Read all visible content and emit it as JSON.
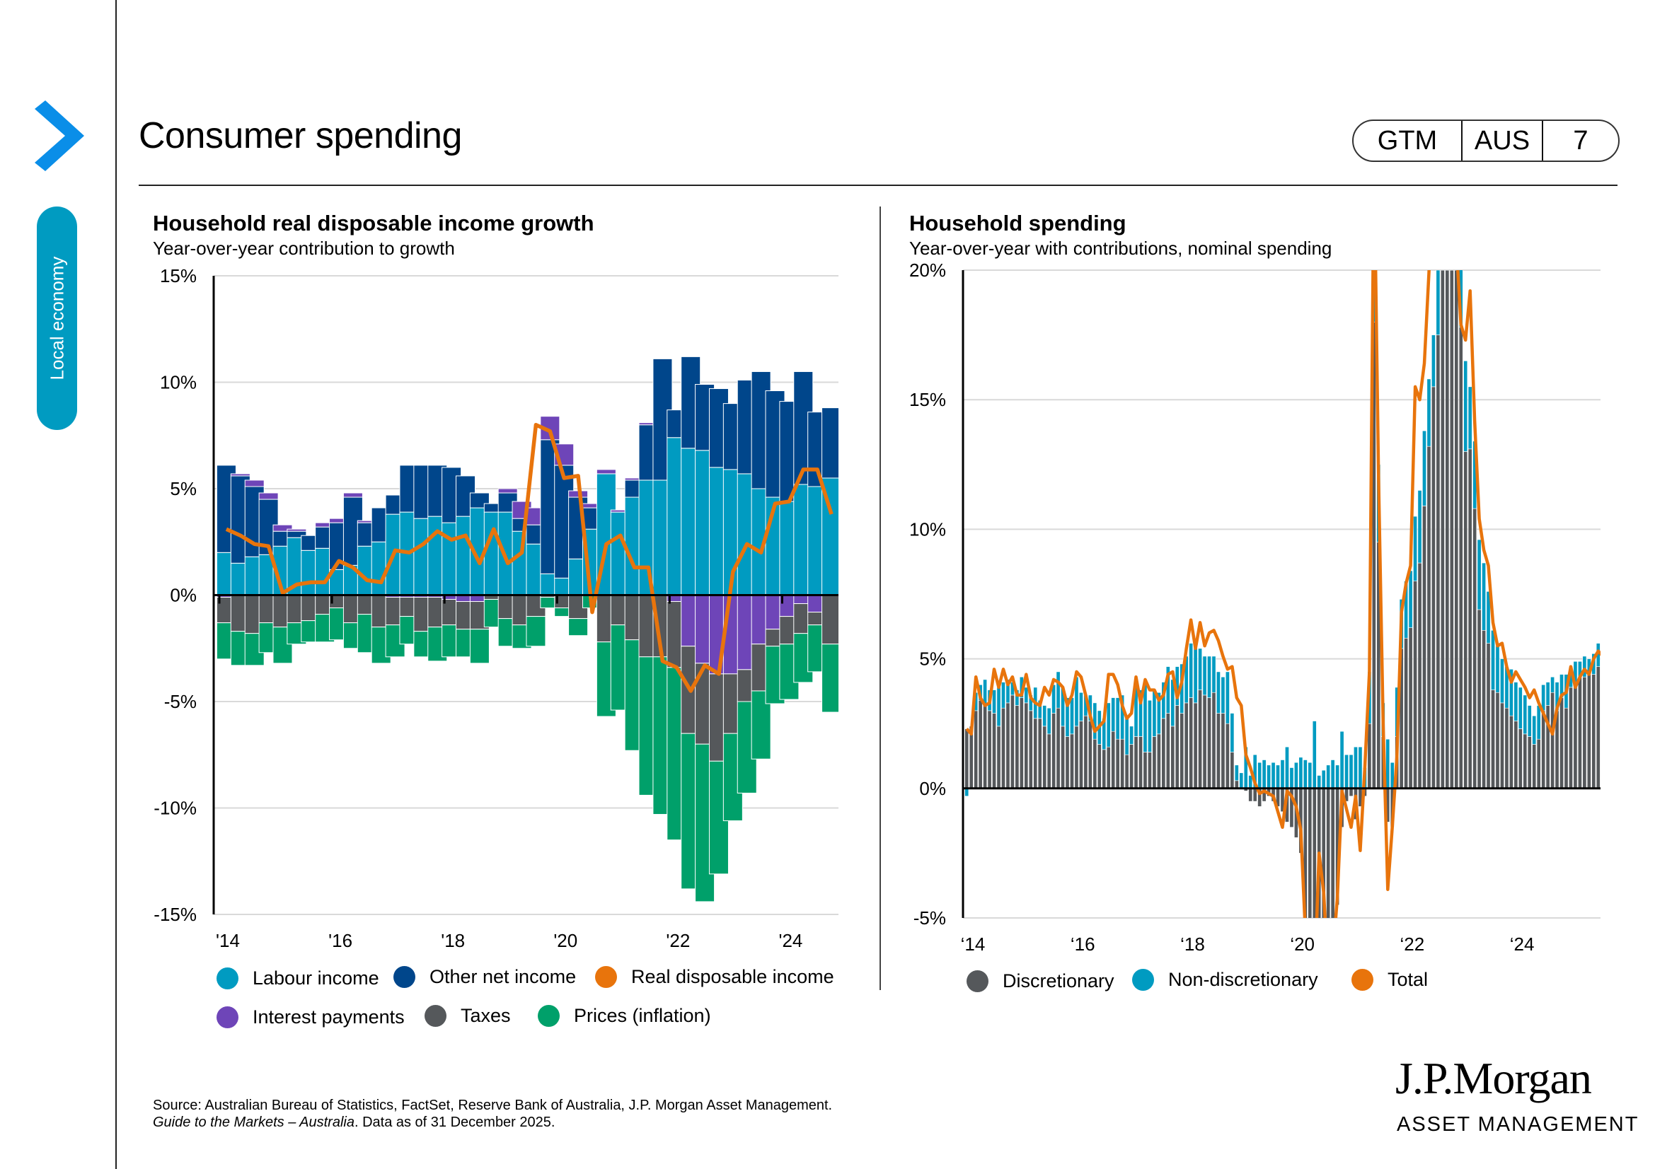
{
  "page": {
    "title": "Consumer spending",
    "section_tab": "Local economy",
    "badge": {
      "series": "GTM",
      "region": "AUS",
      "page": "7"
    },
    "source_line1": "Source: Australian Bureau of Statistics, FactSet, Reserve Bank of Australia, J.P. Morgan Asset Management.",
    "source_line2_italic": "Guide to the Markets – Australia",
    "source_line2_rest": ". Data as of 31 December 2025.",
    "logo_main": "J.P.Morgan",
    "logo_sub": "ASSET MANAGEMENT",
    "colors": {
      "accent_blue": "#0a8ee8",
      "teal": "#009bc1",
      "navy": "#00468b",
      "orange": "#e8740c",
      "purple": "#6e45b8",
      "grey": "#55585b",
      "green": "#00a06a"
    }
  },
  "chart_data": [
    {
      "type": "bar",
      "stacked": true,
      "title": "Household real disposable income growth",
      "subtitle": "Year-over-year contribution to growth",
      "frequency": "quarterly",
      "start": "2014Q1",
      "ylim": [
        -15,
        15
      ],
      "yticks": [
        "15%",
        "10%",
        "5%",
        "0%",
        "-5%",
        "-10%",
        "-15%"
      ],
      "ytick_values": [
        15,
        10,
        5,
        0,
        -5,
        -10,
        -15
      ],
      "xticks": [
        "'14",
        "'16",
        "'18",
        "'20",
        "'22",
        "'24"
      ],
      "grid": true,
      "legend_position": "bottom",
      "series": [
        {
          "name": "Labour income",
          "color": "#009bc1",
          "values": [
            2.0,
            1.5,
            1.8,
            1.9,
            2.3,
            2.7,
            2.1,
            2.2,
            1.2,
            1.4,
            2.3,
            2.5,
            3.8,
            3.9,
            3.6,
            3.7,
            3.4,
            3.7,
            4.1,
            3.9,
            3.9,
            3.0,
            2.4,
            1.0,
            0.8,
            1.7,
            3.1,
            5.7,
            3.9,
            4.6,
            5.4,
            5.4,
            7.4,
            6.9,
            6.8,
            6.0,
            5.9,
            5.7,
            5.0,
            4.6,
            4.4,
            5.2,
            5.1,
            5.5
          ]
        },
        {
          "name": "Other net income",
          "color": "#00468b",
          "values": [
            4.1,
            4.1,
            3.3,
            2.6,
            0.7,
            0.3,
            0.7,
            1.0,
            2.2,
            3.2,
            1.1,
            1.6,
            0.9,
            2.2,
            2.5,
            2.4,
            2.6,
            1.9,
            0.7,
            0.4,
            0.9,
            0.6,
            0.9,
            6.3,
            5.3,
            2.9,
            1.0,
            0.0,
            0.0,
            0.8,
            2.6,
            5.7,
            1.3,
            4.3,
            3.1,
            3.7,
            3.1,
            4.4,
            5.5,
            5.0,
            4.7,
            5.3,
            3.5,
            3.3
          ]
        },
        {
          "name": "Interest payments",
          "color": "#6e45b8",
          "values": [
            -0.1,
            0.1,
            0.3,
            0.3,
            0.3,
            0.1,
            0.0,
            0.2,
            0.2,
            0.2,
            0.1,
            0.0,
            -0.1,
            -0.1,
            -0.1,
            -0.1,
            -0.2,
            -0.3,
            -0.3,
            0.0,
            0.2,
            0.8,
            0.8,
            1.1,
            1.0,
            0.3,
            0.2,
            0.2,
            0.1,
            0.1,
            0.1,
            0.0,
            -0.3,
            -2.4,
            -3.2,
            -3.7,
            -3.7,
            -3.5,
            -2.3,
            -1.6,
            -1.0,
            -0.4,
            -0.8,
            0.0
          ]
        },
        {
          "name": "Taxes",
          "color": "#55585b",
          "values": [
            -1.2,
            -1.7,
            -1.8,
            -1.3,
            -1.5,
            -1.3,
            -1.2,
            -0.9,
            -0.6,
            -1.3,
            -0.9,
            -1.5,
            -1.3,
            -0.9,
            -1.6,
            -1.4,
            -1.2,
            -1.3,
            -1.3,
            -0.2,
            -1.1,
            -1.4,
            -1.0,
            -0.1,
            -0.6,
            -1.1,
            0.0,
            -2.2,
            -1.4,
            -2.1,
            -2.9,
            -2.9,
            -3.1,
            -4.1,
            -3.8,
            -4.1,
            -2.8,
            -1.5,
            -2.2,
            -0.8,
            -1.3,
            -1.4,
            -0.6,
            -2.3
          ]
        },
        {
          "name": "Prices (inflation)",
          "color": "#00a06a",
          "values": [
            -1.7,
            -1.6,
            -1.5,
            -1.4,
            -1.7,
            -1.0,
            -1.0,
            -1.3,
            -1.5,
            -1.2,
            -1.8,
            -1.7,
            -1.5,
            -1.3,
            -1.2,
            -1.6,
            -1.5,
            -1.3,
            -1.6,
            -1.3,
            -1.3,
            -1.1,
            -1.4,
            -0.5,
            -0.4,
            -0.8,
            -0.6,
            -3.5,
            -4.0,
            -5.2,
            -6.5,
            -7.4,
            -8.1,
            -7.3,
            -7.4,
            -5.3,
            -4.1,
            -4.3,
            -3.2,
            -2.7,
            -2.6,
            -2.3,
            -2.2,
            -3.2
          ]
        }
      ],
      "line": {
        "name": "Real disposable income",
        "color": "#e8740c",
        "values": [
          3.1,
          2.8,
          2.4,
          2.3,
          0.1,
          0.5,
          0.6,
          0.6,
          1.6,
          1.3,
          0.7,
          0.6,
          2.1,
          2.0,
          2.4,
          3.0,
          2.6,
          2.8,
          1.5,
          3.1,
          1.5,
          2.0,
          8.0,
          7.7,
          5.5,
          5.6,
          -0.8,
          2.4,
          2.8,
          1.3,
          1.3,
          -3.1,
          -3.4,
          -4.5,
          -3.3,
          -3.7,
          1.1,
          2.4,
          2.0,
          4.3,
          4.4,
          5.9,
          5.9,
          3.8
        ]
      }
    },
    {
      "type": "bar",
      "stacked": true,
      "title": "Household spending",
      "subtitle": "Year-over-year with contributions, nominal spending",
      "frequency": "monthly",
      "start": "2014-01",
      "ylim": [
        -5,
        20
      ],
      "yticks": [
        "20%",
        "15%",
        "10%",
        "5%",
        "0%",
        "-5%"
      ],
      "ytick_values": [
        20,
        15,
        10,
        5,
        0,
        -5
      ],
      "xticks": [
        "‘14",
        "‘16",
        "‘18",
        "‘20",
        "‘22",
        "‘24"
      ],
      "grid": true,
      "legend_position": "bottom",
      "series": [
        {
          "name": "Discretionary",
          "color": "#55585b",
          "values": [
            2.3,
            2.4,
            3.0,
            3.4,
            3.2,
            3.0,
            2.9,
            2.4,
            3.1,
            3.3,
            3.6,
            3.2,
            3.5,
            3.3,
            3.0,
            2.7,
            2.7,
            2.4,
            2.1,
            2.9,
            3.1,
            2.4,
            2.0,
            2.1,
            2.4,
            2.6,
            2.8,
            2.6,
            1.9,
            1.7,
            1.5,
            1.6,
            2.2,
            1.9,
            1.9,
            1.3,
            1.7,
            2.0,
            2.0,
            1.4,
            1.4,
            2.0,
            2.1,
            2.7,
            2.9,
            2.4,
            3.2,
            2.9,
            3.3,
            3.5,
            3.3,
            3.8,
            3.6,
            3.5,
            3.7,
            2.9,
            2.9,
            2.5,
            1.4,
            0.3,
            0.0,
            -0.1,
            -0.5,
            -0.5,
            -0.7,
            -0.5,
            -0.3,
            -0.5,
            -0.7,
            -0.9,
            -1.3,
            -1.5,
            -1.9,
            -2.5,
            -5.5,
            -6.5,
            -6.5,
            -6.5,
            -6.5,
            -6.5,
            -6.0,
            -4.5,
            -1.5,
            -0.5,
            -0.3,
            -1.2,
            -0.7,
            -0.3,
            2.5,
            18.0,
            9.5,
            2.0,
            -1.3,
            -1.5,
            2.0,
            5.4,
            5.8,
            6.2,
            8.0,
            8.7,
            10.9,
            13.2,
            15.5,
            17.5,
            20.0,
            20.0,
            20.0,
            20.0,
            17.8,
            13.0,
            13.1,
            10.8,
            6.9,
            6.1,
            5.6,
            3.8,
            3.7,
            3.3,
            3.1,
            2.8,
            2.6,
            2.3,
            2.1,
            2.0,
            1.7,
            1.9,
            3.0,
            3.2,
            3.7,
            3.0,
            3.5,
            3.1,
            3.9,
            4.1,
            4.3,
            4.3,
            4.4,
            4.4,
            4.7
          ]
        },
        {
          "name": "Non-discretionary",
          "color": "#009bc1",
          "values": [
            -0.3,
            0.0,
            0.7,
            0.6,
            1.0,
            0.8,
            0.9,
            1.5,
            1.0,
            0.9,
            0.5,
            0.6,
            0.8,
            0.6,
            0.6,
            1.2,
            0.7,
            0.8,
            1.0,
            1.1,
            1.4,
            1.5,
            1.5,
            1.4,
            1.9,
            1.1,
            0.8,
            1.0,
            1.4,
            1.3,
            1.2,
            1.7,
            1.3,
            1.6,
            1.7,
            1.5,
            0.7,
            1.9,
            1.8,
            2.6,
            2.0,
            1.8,
            1.6,
            1.4,
            1.8,
            1.8,
            1.5,
            1.9,
            1.8,
            2.1,
            2.2,
            1.6,
            1.5,
            1.6,
            1.4,
            1.6,
            1.4,
            2.0,
            1.5,
            0.6,
            0.6,
            1.6,
            0.5,
            1.3,
            1.0,
            1.1,
            0.9,
            1.0,
            0.9,
            1.1,
            1.6,
            0.8,
            1.0,
            1.2,
            1.1,
            1.0,
            2.6,
            0.5,
            0.7,
            0.9,
            1.1,
            0.9,
            2.2,
            1.3,
            1.3,
            1.6,
            1.6,
            0.8,
            2.0,
            4.0,
            3.0,
            1.3,
            1.9,
            1.0,
            1.9,
            1.9,
            2.2,
            2.2,
            2.5,
            2.8,
            2.9,
            2.6,
            2.0,
            2.5,
            2.5,
            2.5,
            2.5,
            2.5,
            2.3,
            3.5,
            2.4,
            2.6,
            2.7,
            2.6,
            2.0,
            2.3,
            1.8,
            1.7,
            1.6,
            1.8,
            1.5,
            1.6,
            1.5,
            1.2,
            1.1,
            1.3,
            1.0,
            0.9,
            0.6,
            1.1,
            0.9,
            1.3,
            0.6,
            0.8,
            0.6,
            0.8,
            0.6,
            0.8,
            0.9
          ]
        }
      ],
      "line": {
        "name": "Total",
        "color": "#e8740c",
        "values": [
          2.3,
          2.1,
          4.3,
          3.5,
          3.2,
          3.3,
          4.6,
          3.9,
          4.6,
          4.0,
          4.3,
          3.6,
          3.6,
          4.4,
          3.5,
          3.3,
          3.2,
          3.9,
          3.6,
          4.2,
          4.1,
          3.9,
          3.2,
          3.6,
          4.5,
          4.3,
          3.6,
          2.8,
          2.2,
          2.4,
          2.6,
          4.4,
          4.4,
          4.0,
          3.2,
          2.7,
          2.9,
          4.3,
          3.3,
          4.2,
          3.8,
          3.8,
          3.4,
          3.6,
          4.4,
          4.5,
          3.5,
          4.1,
          5.4,
          6.5,
          5.4,
          6.4,
          5.5,
          6.0,
          6.1,
          5.7,
          5.1,
          4.6,
          4.7,
          3.5,
          3.2,
          1.3,
          0.8,
          0.2,
          -0.2,
          -0.1,
          -0.2,
          -0.3,
          -0.9,
          -1.5,
          -0.1,
          -0.3,
          -0.7,
          -1.6,
          -5.5,
          -7.3,
          -7.6,
          -2.5,
          -4.0,
          -7.2,
          -6.5,
          -4.2,
          -0.1,
          -0.8,
          -1.5,
          -0.3,
          -2.4,
          0.8,
          4.5,
          24.5,
          12.0,
          2.5,
          -3.9,
          -1.5,
          1.2,
          6.8,
          7.9,
          8.6,
          15.5,
          15.0,
          16.4,
          19.9,
          24.0,
          25.3,
          25.4,
          23.2,
          22.1,
          21.0,
          17.9,
          17.3,
          19.2,
          14.2,
          10.4,
          9.2,
          8.6,
          6.4,
          5.5,
          5.6,
          4.7,
          4.1,
          4.5,
          4.2,
          3.9,
          3.5,
          3.8,
          3.3,
          2.9,
          2.5,
          2.1,
          3.1,
          3.6,
          3.7,
          4.7,
          3.9,
          4.3,
          4.6,
          4.4,
          5.0,
          5.3,
          5.1,
          5.5
        ]
      }
    }
  ],
  "left_legend": [
    "Labour income",
    "Other net income",
    "Real disposable income",
    "Interest payments",
    "Taxes",
    "Prices (inflation)"
  ],
  "right_legend": [
    "Discretionary",
    "Non-discretionary",
    "Total"
  ]
}
